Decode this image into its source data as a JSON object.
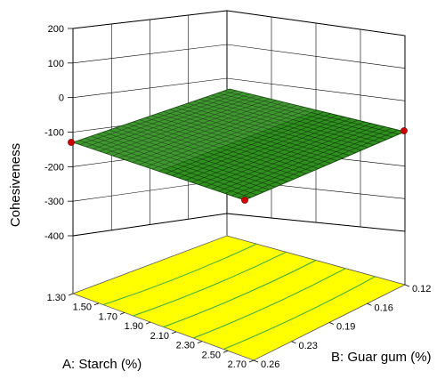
{
  "chart_data": {
    "type": "surface-3d",
    "z_label": "Cohesiveness",
    "x_label": "A: Starch (%)",
    "y_label": "B: Guar gum (%)",
    "z_ticks": [
      "200",
      "100",
      "0",
      "-100",
      "-200",
      "-300",
      "-400"
    ],
    "x_ticks": [
      "1.30",
      "1.50",
      "1.70",
      "1.90",
      "2.10",
      "2.30",
      "2.50",
      "2.70"
    ],
    "y_ticks": [
      "0.12",
      "0.16",
      "0.19",
      "0.23",
      "0.26"
    ],
    "zlim": [
      -400,
      200
    ],
    "xlim": [
      1.3,
      2.7
    ],
    "ylim": [
      0.12,
      0.26
    ],
    "surface": {
      "z_values": [
        -97,
        -103,
        -110,
        -118
      ],
      "corner_note": "nearly flat plane around -100 to -120",
      "color": "#2f8f1f"
    },
    "design_points_visible": 3,
    "contour_floor_color": "#ffff00",
    "contour_line_color": "#3aa84a",
    "point_color": "#cc0000"
  }
}
